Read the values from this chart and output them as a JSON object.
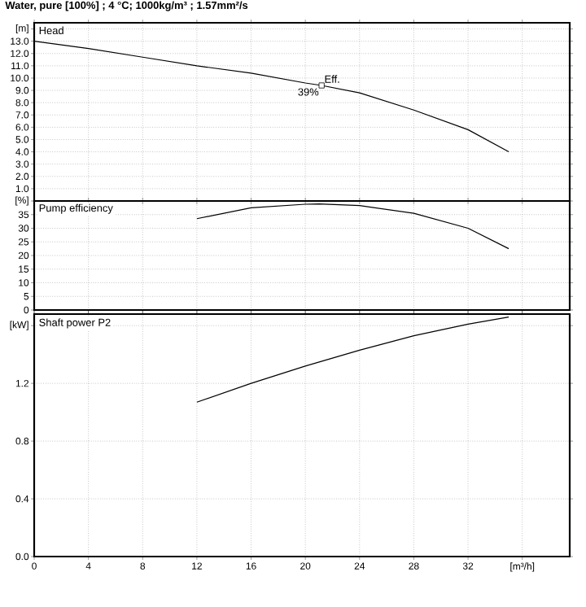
{
  "chart_data": [
    {
      "type": "line",
      "title": "Water, pure [100%] ; 4 °C; 1000kg/m³ ; 1.57mm²/s",
      "ylabel": "Head",
      "xlim": [
        0,
        39.5
      ],
      "ylim": [
        0,
        14.5
      ],
      "xticks": [
        0,
        4,
        8,
        12,
        16,
        20,
        24,
        28,
        32,
        36
      ],
      "yticks": [
        {
          "value": 1,
          "label": "1.0"
        },
        {
          "value": 2,
          "label": "2.0"
        },
        {
          "value": 3,
          "label": "3.0"
        },
        {
          "value": 4,
          "label": "4.0"
        },
        {
          "value": 5,
          "label": "5.0"
        },
        {
          "value": 6,
          "label": "6.0"
        },
        {
          "value": 7,
          "label": "7.0"
        },
        {
          "value": 8,
          "label": "8.0"
        },
        {
          "value": 9,
          "label": "9.0"
        },
        {
          "value": 10,
          "label": "10.0"
        },
        {
          "value": 11,
          "label": "11.0"
        },
        {
          "value": 12,
          "label": "12.0"
        },
        {
          "value": 13,
          "label": "13.0"
        },
        {
          "value": 14,
          "label": "[m]"
        }
      ],
      "grid": true,
      "tick_labels": "y",
      "series": [
        {
          "color": "#000000",
          "x": [
            0,
            4,
            8,
            12,
            16,
            20,
            21.2,
            24,
            28,
            32,
            35
          ],
          "values": [
            13.0,
            12.4,
            11.7,
            11.0,
            10.4,
            9.6,
            9.4,
            8.8,
            7.4,
            5.8,
            4.0
          ]
        },
        {
          "type": "scatter",
          "marker": "square",
          "color": "#000000",
          "x": [
            21.2
          ],
          "values": [
            9.4
          ]
        }
      ],
      "annotations": [
        {
          "text": "Eff.",
          "x": 21.2,
          "y": 9.4
        },
        {
          "text": "39%",
          "x": 21.2,
          "y": 9.4
        }
      ]
    },
    {
      "type": "line",
      "ylabel": "Pump efficiency",
      "xlim": [
        0,
        39.5
      ],
      "ylim": [
        0,
        40
      ],
      "xticks": [
        0,
        4,
        8,
        12,
        16,
        20,
        24,
        28,
        32,
        36
      ],
      "yticks": [
        0,
        5,
        10,
        15,
        20,
        25,
        30,
        35,
        {
          "value": 40,
          "label": "[%]"
        }
      ],
      "grid": true,
      "tick_labels": "y",
      "series": [
        {
          "color": "#000000",
          "x": [
            12,
            16,
            20,
            21,
            24,
            28,
            32,
            35
          ],
          "values": [
            33.5,
            37.5,
            38.8,
            38.9,
            38.3,
            35.5,
            30,
            22.5
          ]
        }
      ]
    },
    {
      "type": "line",
      "ylabel": "Shaft power P2",
      "xlim": [
        0,
        39.5
      ],
      "ylim": [
        0,
        1.68
      ],
      "xticks": [
        0,
        4,
        8,
        12,
        16,
        20,
        24,
        28,
        32,
        {
          "value": 36,
          "label": "[m³/h]"
        }
      ],
      "yticks": [
        {
          "value": 0,
          "label": "0.0"
        },
        0.4,
        0.8,
        1.2,
        {
          "value": 1.6,
          "label": "[kW]"
        }
      ],
      "grid": true,
      "series": [
        {
          "color": "#000000",
          "x": [
            12,
            16,
            20,
            24,
            28,
            32,
            35
          ],
          "values": [
            1.07,
            1.2,
            1.32,
            1.43,
            1.53,
            1.61,
            1.66
          ]
        }
      ]
    }
  ]
}
